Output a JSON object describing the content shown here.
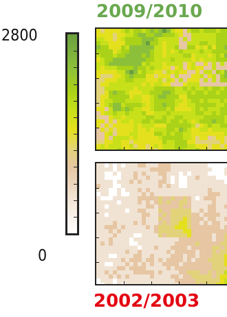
{
  "chart_data": [
    {
      "type": "heatmap",
      "title": "2009/2010",
      "colorbar": {
        "max_label": "2800",
        "min_label": "0",
        "range": [
          0,
          2800
        ]
      },
      "summary": "mostly green-yellow (high values) with scattered tan patches and a white spot near top-center"
    },
    {
      "type": "heatmap",
      "title": "2002/2003",
      "summary": "mostly white-beige (low values) with a yellow/tan region in the lower-right"
    }
  ],
  "colors": {
    "title_top": "#6aa84f",
    "title_bottom": "#e30613",
    "colorbar_stops": [
      "#ffffff",
      "#f1e3d3",
      "#e6c6a3",
      "#e2d37a",
      "#e5e01e",
      "#c7e01a",
      "#a9d218",
      "#8dc03a",
      "#6a9f3f"
    ]
  }
}
